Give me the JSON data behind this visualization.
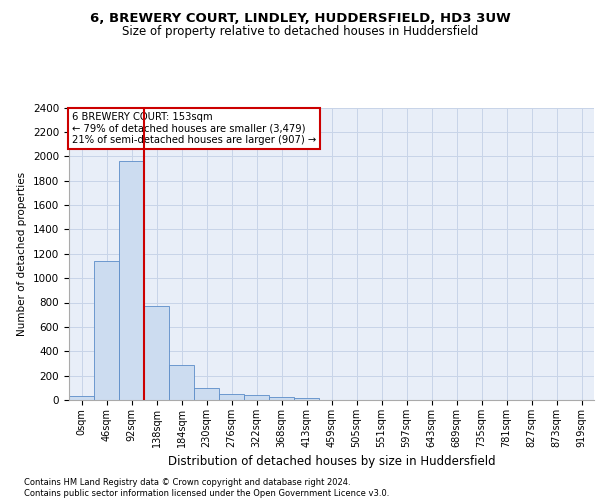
{
  "title": "6, BREWERY COURT, LINDLEY, HUDDERSFIELD, HD3 3UW",
  "subtitle": "Size of property relative to detached houses in Huddersfield",
  "xlabel": "Distribution of detached houses by size in Huddersfield",
  "ylabel": "Number of detached properties",
  "categories": [
    "0sqm",
    "46sqm",
    "92sqm",
    "138sqm",
    "184sqm",
    "230sqm",
    "276sqm",
    "322sqm",
    "368sqm",
    "413sqm",
    "459sqm",
    "505sqm",
    "551sqm",
    "597sqm",
    "643sqm",
    "689sqm",
    "735sqm",
    "781sqm",
    "827sqm",
    "873sqm",
    "919sqm"
  ],
  "values": [
    30,
    1140,
    1960,
    775,
    290,
    95,
    50,
    45,
    25,
    15,
    0,
    0,
    0,
    0,
    0,
    0,
    0,
    0,
    0,
    0,
    0
  ],
  "bar_color": "#ccdcf0",
  "bar_edge_color": "#5b8cc8",
  "grid_color": "#c8d4e8",
  "bg_color": "#e8eef8",
  "redline_x": 2.5,
  "annotation_text_line1": "6 BREWERY COURT: 153sqm",
  "annotation_text_line2": "← 79% of detached houses are smaller (3,479)",
  "annotation_text_line3": "21% of semi-detached houses are larger (907) →",
  "ylim": [
    0,
    2400
  ],
  "yticks": [
    0,
    200,
    400,
    600,
    800,
    1000,
    1200,
    1400,
    1600,
    1800,
    2000,
    2200,
    2400
  ],
  "footer_line1": "Contains HM Land Registry data © Crown copyright and database right 2024.",
  "footer_line2": "Contains public sector information licensed under the Open Government Licence v3.0."
}
